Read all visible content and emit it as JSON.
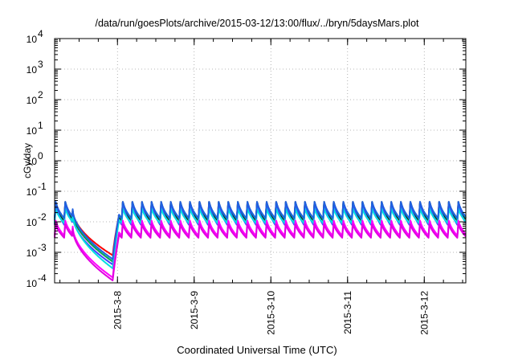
{
  "chart_data": {
    "type": "line",
    "title": "/data/run/goesPlots/archive/2015-03-12/13:00/flux/../bryn/5daysMars.plot",
    "xlabel": "Coordinated Universal Time (UTC)",
    "ylabel": "cGy/day",
    "y_scale": "log",
    "ylim": [
      0.0001,
      10000
    ],
    "xlim": [
      "2015-03-07 04:20",
      "2015-03-12 13:00"
    ],
    "grid": true,
    "x_ticks": [
      "2015-3-8",
      "2015-3-9",
      "2015-3-10",
      "2015-3-11",
      "2015-3-12"
    ],
    "y_ticks": [
      {
        "base": "10",
        "exp": "-4"
      },
      {
        "base": "10",
        "exp": "-3"
      },
      {
        "base": "10",
        "exp": "-2"
      },
      {
        "base": "10",
        "exp": "-1"
      },
      {
        "base": "10",
        "exp": "0"
      },
      {
        "base": "10",
        "exp": "1"
      },
      {
        "base": "10",
        "exp": "2"
      },
      {
        "base": "10",
        "exp": "3"
      },
      {
        "base": "10",
        "exp": "4"
      }
    ],
    "oscillation_period_hours": 3,
    "dip_window": [
      "2015-03-07 10:00",
      "2015-03-07 22:30"
    ],
    "series": [
      {
        "color": "#ff0000",
        "peak": 0.05,
        "trough": 0.012,
        "dip_min": 0.0008
      },
      {
        "color": "#000000",
        "peak": 0.045,
        "trough": 0.011,
        "dip_min": 0.0005
      },
      {
        "color": "#00b060",
        "peak": 0.05,
        "trough": 0.012,
        "dip_min": 0.0005
      },
      {
        "color": "#4040ff",
        "peak": 0.045,
        "trough": 0.008,
        "dip_min": 0.0004
      },
      {
        "color": "#00e0e0",
        "peak": 0.03,
        "trough": 0.009,
        "dip_min": 0.0003
      },
      {
        "color": "#2060e0",
        "peak": 0.05,
        "trough": 0.013,
        "dip_min": 0.0006
      },
      {
        "color": "#ff00ff",
        "peak": 0.012,
        "trough": 0.0035,
        "dip_min": 0.00015
      },
      {
        "color": "#e000e0",
        "peak": 0.009,
        "trough": 0.003,
        "dip_min": 0.00012
      }
    ]
  }
}
